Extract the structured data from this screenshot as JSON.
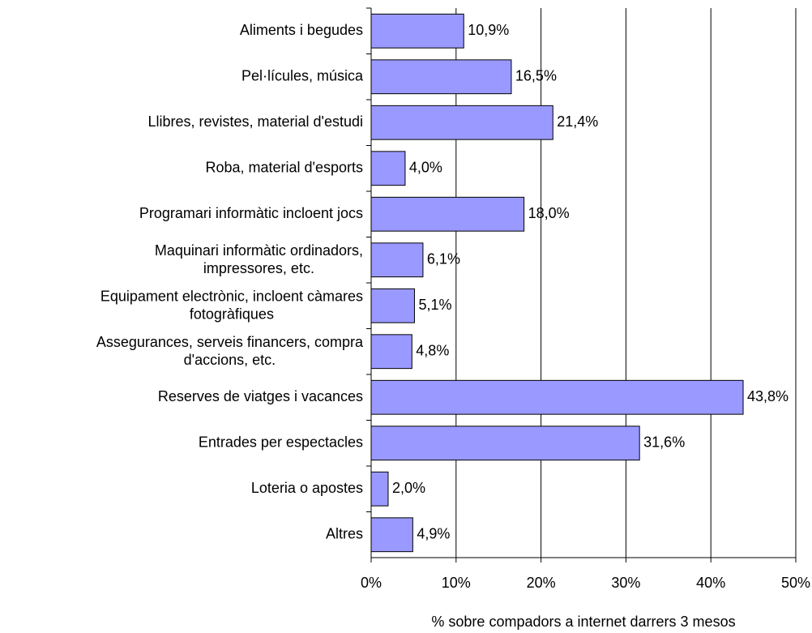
{
  "chart_data": {
    "type": "barh",
    "xlabel": "% sobre compadors a internet darrers 3 mesos",
    "categories": [
      "Aliments i begudes",
      "Pel·lícules, música",
      "Llibres, revistes, material d'estudi",
      "Roba, material d'esports",
      "Programari informàtic incloent jocs",
      "Maquinari informàtic ordinadors,\nimpressores, etc.",
      "Equipament electrònic, incloent càmares\nfotogràfiques",
      "Assegurances, serveis financers, compra\nd'accions, etc.",
      "Reserves de viatges i vacances",
      "Entrades per espectacles",
      "Loteria o apostes",
      "Altres"
    ],
    "values": [
      10.9,
      16.5,
      21.4,
      4.0,
      18.0,
      6.1,
      5.1,
      4.8,
      43.8,
      31.6,
      2.0,
      4.9
    ],
    "value_labels": [
      "10,9%",
      "16,5%",
      "21,4%",
      "4,0%",
      "18,0%",
      "6,1%",
      "5,1%",
      "4,8%",
      "43,8%",
      "31,6%",
      "2,0%",
      "4,9%"
    ],
    "color": "#9999ff",
    "xlim": [
      0,
      50
    ],
    "xticks": [
      {
        "value": 0,
        "label": "0%"
      },
      {
        "value": 10,
        "label": "10%"
      },
      {
        "value": 20,
        "label": "20%"
      },
      {
        "value": 30,
        "label": "30%"
      },
      {
        "value": 40,
        "label": "40%"
      },
      {
        "value": 50,
        "label": "50%"
      }
    ],
    "grid": true
  }
}
